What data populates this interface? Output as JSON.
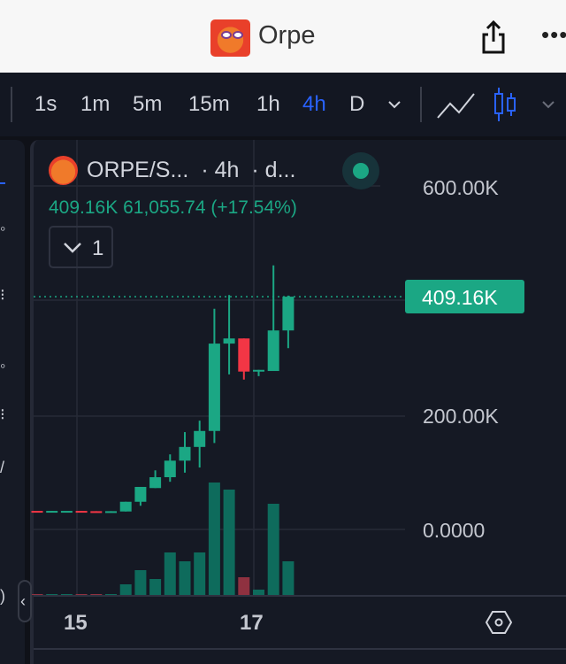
{
  "app": {
    "title": "Orpe",
    "share_icon": "share-icon",
    "more_icon": "more-icon"
  },
  "toolbar": {
    "timeframes": [
      "1s",
      "1m",
      "5m",
      "15m",
      "1h",
      "4h",
      "D"
    ],
    "active_timeframe": "4h",
    "accent": "#2962ff"
  },
  "legend": {
    "symbol": "ORPE/S...",
    "interval": "· 4h",
    "source": "· d...",
    "price": "409.16K",
    "change": "61,055.74 (+17.54%)",
    "indicators_count": "1"
  },
  "price_tag": "409.16K",
  "colors": {
    "up": "#1ba784",
    "down": "#f23645",
    "up_volume": "#0e6b5c",
    "down_volume": "#8f3140",
    "background": "#151924"
  },
  "chart_data": {
    "type": "candlestick",
    "y_ticks": [
      "600.00K",
      "200.00K",
      "0.0000"
    ],
    "ylim": [
      0,
      700000
    ],
    "x_ticks": [
      "15",
      "17"
    ],
    "last_price": 409160,
    "grid": true,
    "candles": [
      {
        "o": 34000,
        "h": 34000,
        "l": 34000,
        "c": 33500,
        "v": 1
      },
      {
        "o": 33500,
        "h": 34000,
        "l": 33500,
        "c": 34000,
        "v": 1
      },
      {
        "o": 34000,
        "h": 34000,
        "l": 34000,
        "c": 34000,
        "v": 1
      },
      {
        "o": 34000,
        "h": 34000,
        "l": 33000,
        "c": 33000,
        "v": 1
      },
      {
        "o": 33500,
        "h": 33500,
        "l": 32500,
        "c": 32500,
        "v": 1
      },
      {
        "o": 32500,
        "h": 33500,
        "l": 32500,
        "c": 33500,
        "v": 1
      },
      {
        "o": 33000,
        "h": 50000,
        "l": 33000,
        "c": 50000,
        "v": 12
      },
      {
        "o": 50000,
        "h": 76000,
        "l": 43000,
        "c": 76000,
        "v": 28
      },
      {
        "o": 74000,
        "h": 105000,
        "l": 74000,
        "c": 93000,
        "v": 18
      },
      {
        "o": 93000,
        "h": 133000,
        "l": 85000,
        "c": 122000,
        "v": 48
      },
      {
        "o": 122000,
        "h": 172000,
        "l": 101000,
        "c": 146000,
        "v": 38
      },
      {
        "o": 146000,
        "h": 192000,
        "l": 110000,
        "c": 174000,
        "v": 48
      },
      {
        "o": 174000,
        "h": 388000,
        "l": 153000,
        "c": 327000,
        "v": 127
      },
      {
        "o": 327000,
        "h": 412000,
        "l": 273000,
        "c": 336000,
        "v": 119
      },
      {
        "o": 336000,
        "h": 336000,
        "l": 264000,
        "c": 278000,
        "v": 20
      },
      {
        "o": 278000,
        "h": 281000,
        "l": 270000,
        "c": 281000,
        "v": 6
      },
      {
        "o": 279000,
        "h": 464000,
        "l": 279000,
        "c": 350000,
        "v": 103
      },
      {
        "o": 350000,
        "h": 411000,
        "l": 319000,
        "c": 409160,
        "v": 38
      }
    ]
  }
}
